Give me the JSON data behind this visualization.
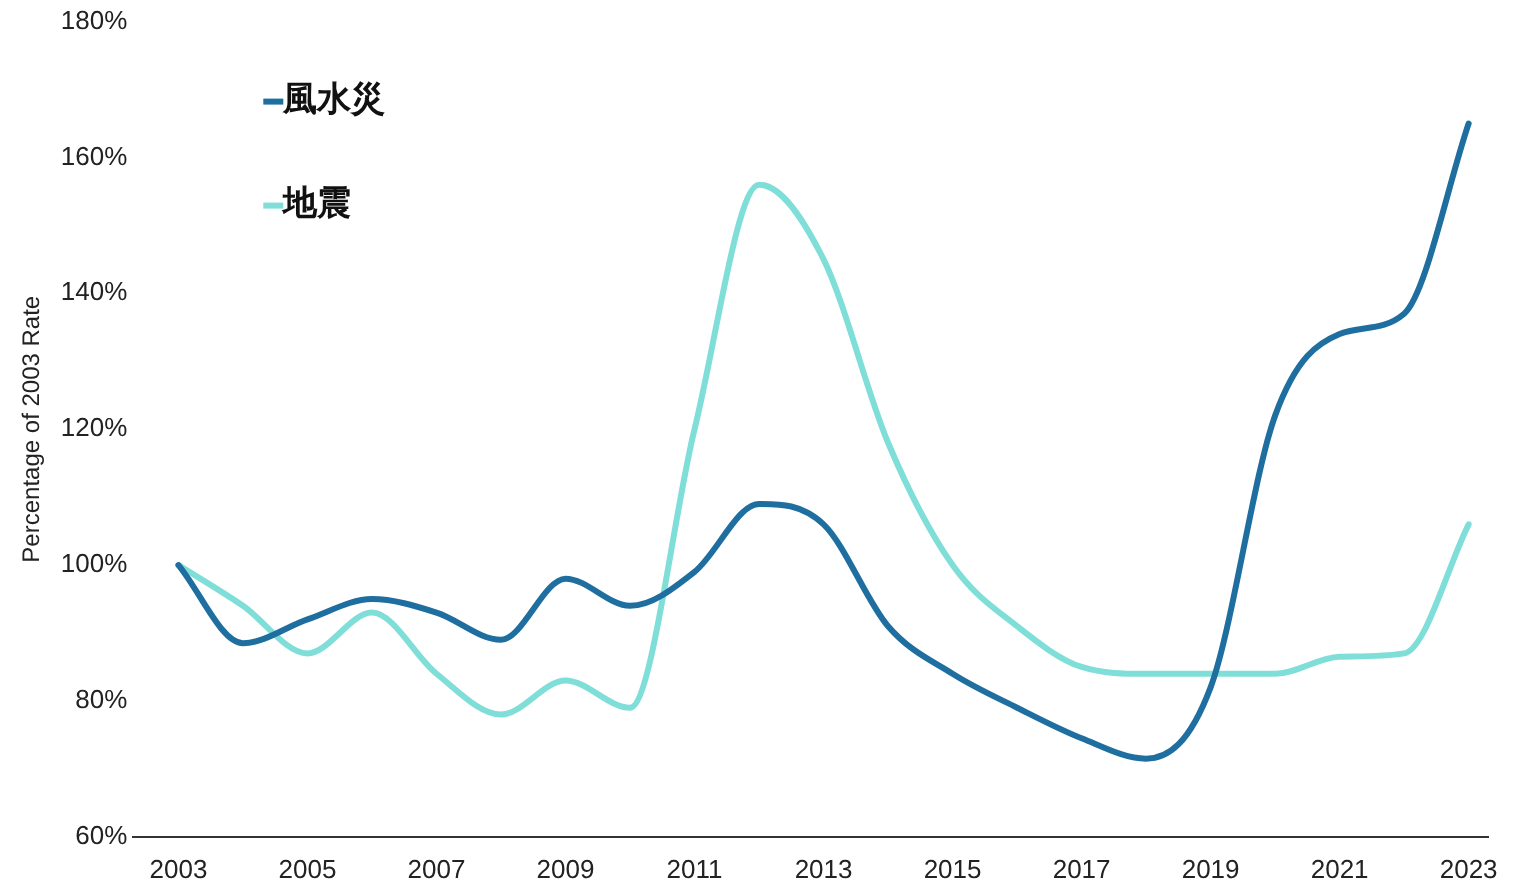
{
  "chart_data": {
    "type": "line",
    "ylabel": "Percentage of 2003 Rate",
    "x": [
      2003,
      2004,
      2005,
      2006,
      2007,
      2008,
      2009,
      2010,
      2011,
      2012,
      2013,
      2014,
      2015,
      2016,
      2017,
      2018,
      2019,
      2020,
      2021,
      2022,
      2023
    ],
    "series": [
      {
        "name": "風水災",
        "color": "#1f6ea0",
        "values": [
          100,
          88.5,
          92,
          95,
          93,
          89,
          98,
          94,
          99,
          109,
          106,
          91,
          84,
          79,
          74.5,
          71.5,
          82,
          122,
          134,
          137,
          165
        ]
      },
      {
        "name": "地震",
        "color": "#7fded8",
        "values": [
          100,
          94,
          87,
          93,
          84,
          78,
          83,
          79,
          120,
          156,
          145,
          118,
          100,
          91,
          85,
          84,
          84,
          84,
          86.5,
          87,
          106
        ]
      }
    ],
    "xlim": [
      2002.3,
      2023.3
    ],
    "xticks": [
      2003,
      2005,
      2007,
      2009,
      2011,
      2013,
      2015,
      2017,
      2019,
      2021,
      2023
    ],
    "ylim": [
      60,
      180
    ],
    "yticks": [
      {
        "value": 60,
        "label": "60%"
      },
      {
        "value": 80,
        "label": "80%"
      },
      {
        "value": 100,
        "label": "100%"
      },
      {
        "value": 120,
        "label": "120%"
      },
      {
        "value": 140,
        "label": "140%"
      },
      {
        "value": 160,
        "label": "160%"
      },
      {
        "value": 180,
        "label": "180%"
      }
    ],
    "grid": false,
    "legend": "top left",
    "marker": "none",
    "line_style": "solid"
  }
}
